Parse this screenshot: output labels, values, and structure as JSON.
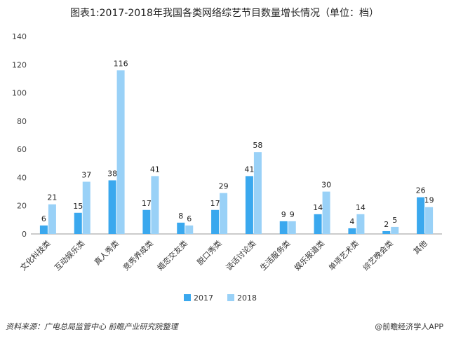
{
  "title": "图表1:2017-2018年我国各类网络综艺节目数量增长情况（单位：档）",
  "source": "资料来源：广电总局监管中心 前瞻产业研究院整理",
  "brand": "@前瞻经济学人APP",
  "colors": {
    "s2017": "#3AA8EE",
    "s2018": "#99D1F7",
    "axis": "#999999",
    "grid": "#E6E6E6"
  },
  "chart_data": {
    "type": "bar",
    "title": "图表1:2017-2018年我国各类网络综艺节目数量增长情况（单位：档）",
    "xlabel": "",
    "ylabel": "",
    "ylim": [
      0,
      140
    ],
    "yticks": [
      0,
      20,
      40,
      60,
      80,
      100,
      120,
      140
    ],
    "grid": false,
    "legend": "bottom",
    "categories": [
      "文化科技类",
      "互动娱乐类",
      "真人秀类",
      "竞秀养成类",
      "婚恋交友类",
      "脱口秀类",
      "谈话讨论类",
      "生活服务类",
      "娱乐报道类",
      "单项艺术类",
      "综艺晚会类",
      "其他"
    ],
    "series": [
      {
        "name": "2017",
        "values": [
          6,
          15,
          38,
          17,
          8,
          17,
          41,
          9,
          14,
          4,
          2,
          26
        ]
      },
      {
        "name": "2018",
        "values": [
          21,
          37,
          116,
          41,
          6,
          29,
          58,
          9,
          30,
          14,
          5,
          19
        ]
      }
    ]
  }
}
